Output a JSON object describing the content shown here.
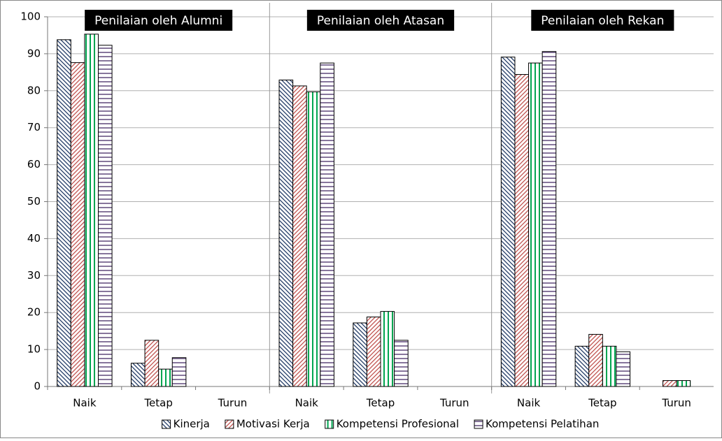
{
  "chart_data": {
    "type": "bar",
    "panel_titles": [
      "Penilaian oleh Alumni",
      "Penilaian oleh Atasan",
      "Penilaian oleh Rekan"
    ],
    "categories": [
      "Naik",
      "Tetap",
      "Turun",
      "Naik",
      "Tetap",
      "Turun",
      "Naik",
      "Tetap",
      "Turun"
    ],
    "series": [
      {
        "name": "Kinerja",
        "color": "#1f3864",
        "pattern": "backslash",
        "values": [
          93.8,
          6.3,
          0,
          82.9,
          17.2,
          0,
          89.1,
          10.9,
          0
        ]
      },
      {
        "name": "Motivasi Kerja",
        "color": "#c0504d",
        "pattern": "slash",
        "values": [
          87.6,
          12.5,
          0,
          81.3,
          18.8,
          0,
          84.4,
          14.1,
          1.6
        ]
      },
      {
        "name": "Kompetensi Profesional",
        "color": "#00a550",
        "pattern": "vertical",
        "values": [
          95.3,
          4.7,
          0,
          79.7,
          20.3,
          0,
          87.5,
          10.9,
          1.6
        ]
      },
      {
        "name": "Kompetensi Pelatihan",
        "color": "#5f497a",
        "pattern": "horizontal",
        "values": [
          92.3,
          7.8,
          0,
          87.5,
          12.5,
          0,
          90.6,
          9.4,
          0
        ]
      }
    ],
    "ylim": [
      0,
      100
    ],
    "yticks": [
      0,
      10,
      20,
      30,
      40,
      50,
      60,
      70,
      80,
      90,
      100
    ],
    "grid": true,
    "legend": "bottom"
  }
}
